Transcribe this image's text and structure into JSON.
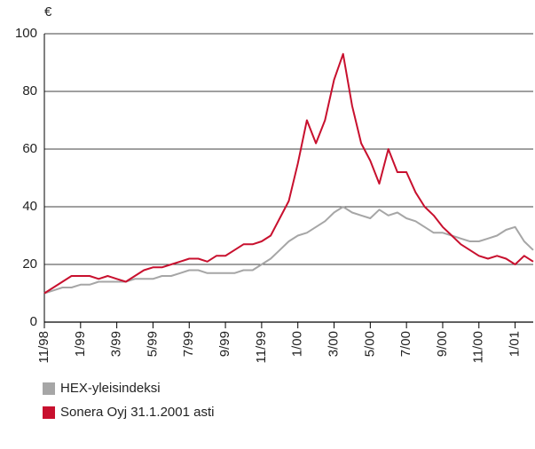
{
  "chart_data": {
    "type": "line",
    "y_unit_label": "€",
    "categories": [
      "11/98",
      null,
      null,
      null,
      "1/99",
      null,
      null,
      null,
      "3/99",
      null,
      null,
      null,
      "5/99",
      null,
      null,
      null,
      "7/99",
      null,
      null,
      null,
      "9/99",
      null,
      null,
      null,
      "11/99",
      null,
      null,
      null,
      "1/00",
      null,
      null,
      null,
      "3/00",
      null,
      null,
      null,
      "5/00",
      null,
      null,
      null,
      "7/00",
      null,
      null,
      null,
      "9/00",
      null,
      null,
      null,
      "11/00",
      null,
      null,
      null,
      "1/01",
      null,
      null
    ],
    "series": [
      {
        "name": "HEX-yleisindeksi",
        "color": "#a6a6a6",
        "values": [
          10,
          11,
          12,
          12,
          13,
          13,
          14,
          14,
          14,
          14,
          15,
          15,
          15,
          16,
          16,
          17,
          18,
          18,
          17,
          17,
          17,
          17,
          18,
          18,
          20,
          22,
          25,
          28,
          30,
          31,
          33,
          35,
          38,
          40,
          38,
          37,
          36,
          39,
          37,
          38,
          36,
          35,
          33,
          31,
          31,
          30,
          29,
          28,
          28,
          29,
          30,
          32,
          33,
          28,
          25
        ]
      },
      {
        "name": "Sonera Oyj 31.1.2001 asti",
        "color": "#c8102e",
        "values": [
          10,
          12,
          14,
          16,
          16,
          16,
          15,
          16,
          15,
          14,
          16,
          18,
          19,
          19,
          20,
          21,
          22,
          22,
          21,
          23,
          23,
          25,
          27,
          27,
          28,
          30,
          36,
          42,
          55,
          70,
          62,
          70,
          84,
          93,
          75,
          62,
          56,
          48,
          60,
          52,
          52,
          45,
          40,
          37,
          33,
          30,
          27,
          25,
          23,
          22,
          23,
          22,
          20,
          23,
          21
        ]
      }
    ],
    "ylim": [
      0,
      100
    ],
    "yticks": [
      0,
      20,
      40,
      60,
      80,
      100
    ],
    "grid": true,
    "legend": "bottom"
  }
}
